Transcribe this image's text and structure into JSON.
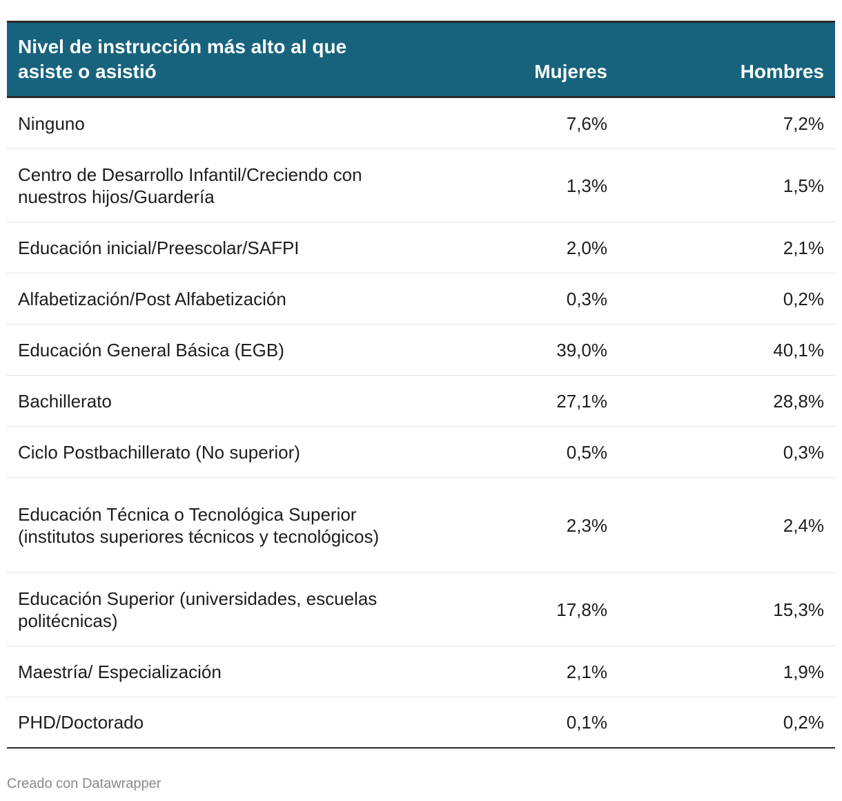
{
  "chart_data": {
    "type": "table",
    "columns": [
      "Nivel de instrucción más alto al que asiste o asistió",
      "Mujeres",
      "Hombres"
    ],
    "rows": [
      {
        "label": "Ninguno",
        "mujeres": "7,6%",
        "hombres": "7,2%"
      },
      {
        "label": "Centro de Desarrollo Infantil/Creciendo con nuestros hijos/Guardería",
        "mujeres": "1,3%",
        "hombres": "1,5%"
      },
      {
        "label": "Educación inicial/Preescolar/SAFPI",
        "mujeres": "2,0%",
        "hombres": "2,1%"
      },
      {
        "label": "Alfabetización/Post Alfabetización",
        "mujeres": "0,3%",
        "hombres": "0,2%"
      },
      {
        "label": "Educación General Básica (EGB)",
        "mujeres": "39,0%",
        "hombres": "40,1%"
      },
      {
        "label": "Bachillerato",
        "mujeres": "27,1%",
        "hombres": "28,8%"
      },
      {
        "label": "Ciclo Postbachillerato (No superior)",
        "mujeres": "0,5%",
        "hombres": "0,3%"
      },
      {
        "label": "Educación Técnica o Tecnológica Superior (institutos superiores técnicos y tecnológicos)",
        "mujeres": "2,3%",
        "hombres": "2,4%"
      },
      {
        "label": "Educación Superior (universidades, escuelas politécnicas)",
        "mujeres": "17,8%",
        "hombres": "15,3%"
      },
      {
        "label": "Maestría/ Especialización",
        "mujeres": "2,1%",
        "hombres": "1,9%"
      },
      {
        "label": "PHD/Doctorado",
        "mujeres": "0,1%",
        "hombres": "0,2%"
      }
    ]
  },
  "colors": {
    "header_bg": "#17637d",
    "header_text": "#ffffff"
  },
  "footer": "Creado con Datawrapper"
}
